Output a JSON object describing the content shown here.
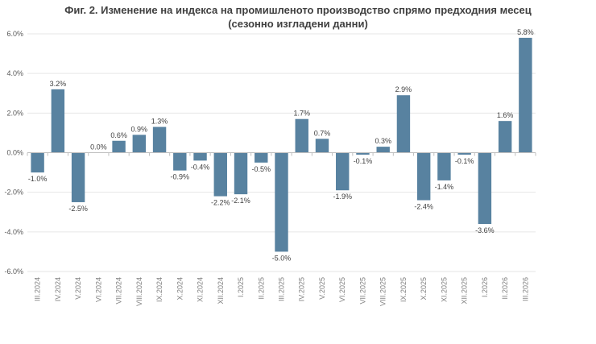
{
  "chart_data": {
    "type": "bar",
    "title": "Фиг. 2. Изменение на индекса на промишленото производство спрямо предходния месец",
    "subtitle": "(сезонно изгладени данни)",
    "categories": [
      "III.2024",
      "IV.2024",
      "V.2024",
      "VI.2024",
      "VII.2024",
      "VIII.2024",
      "IX.2024",
      "X.2024",
      "XI.2024",
      "XII.2024",
      "I.2025",
      "II.2025",
      "III.2025",
      "IV.2025",
      "V.2025",
      "VI.2025",
      "VII.2025",
      "VIII.2025",
      "IX.2025",
      "X.2025",
      "XI.2025",
      "XII.2025",
      "I.2026",
      "II.2026",
      "III.2026"
    ],
    "values": [
      -1.0,
      3.2,
      -2.5,
      0.0,
      0.6,
      0.9,
      1.3,
      -0.9,
      -0.4,
      -2.2,
      -2.1,
      -0.5,
      -5.0,
      1.7,
      0.7,
      -1.9,
      -0.1,
      0.3,
      2.9,
      -2.4,
      -1.4,
      -0.1,
      -3.6,
      1.6,
      5.8
    ],
    "data_labels": [
      "-1.0%",
      "3.2%",
      "-2.5%",
      "0.0%",
      "0.6%",
      "0.9%",
      "1.3%",
      "-0.9%",
      "-0.4%",
      "-2.2%",
      "-2.1%",
      "-0.5%",
      "-5.0%",
      "1.7%",
      "0.7%",
      "-1.9%",
      "-0.1%",
      "0.3%",
      "2.9%",
      "-2.4%",
      "-1.4%",
      "-0.1%",
      "-3.6%",
      "1.6%",
      "5.8%"
    ],
    "yticks": [
      6,
      4,
      2,
      0,
      -2,
      -4,
      -6
    ],
    "ytick_labels": [
      "6.0%",
      "4.0%",
      "2.0%",
      "0.0%",
      "-2.0%",
      "-4.0%",
      "-6.0%"
    ],
    "ylim": [
      -6,
      6
    ],
    "xlabel": "",
    "ylabel": "",
    "grid": true,
    "legend": "none",
    "bar_color": "#5882a0",
    "grid_color": "#e6e6e6",
    "axis_color": "#bfbfbf"
  }
}
